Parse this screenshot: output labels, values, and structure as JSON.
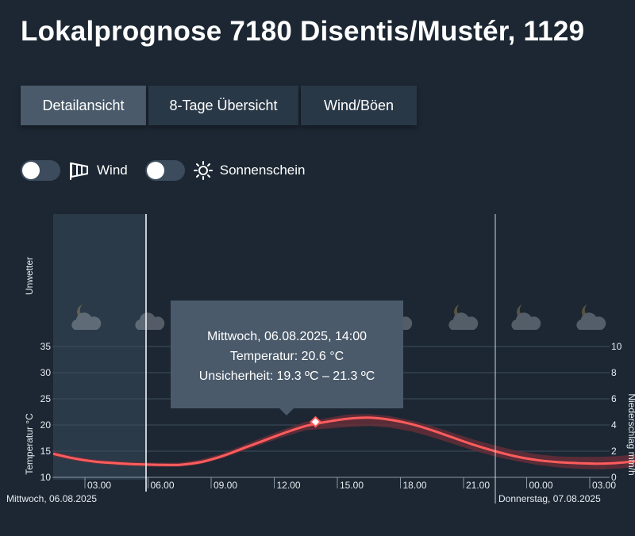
{
  "page": {
    "title": "Lokalprognose 7180 Disentis/Mustér, 1129"
  },
  "tabs": [
    {
      "label": "Detailansicht",
      "active": true
    },
    {
      "label": "8-Tage Übersicht",
      "active": false
    },
    {
      "label": "Wind/Böen",
      "active": false
    }
  ],
  "toggles": {
    "wind": {
      "label": "Wind",
      "icon": "windsock-icon",
      "on": false
    },
    "sun": {
      "label": "Sonnenschein",
      "icon": "sun-icon",
      "on": false
    }
  },
  "chart": {
    "unwetter_label": "Unwetter",
    "y_left_label": "Temperatur °C",
    "y_right_label": "Niederschlag mm/h",
    "y_left_ticks": [
      "10",
      "15",
      "20",
      "25",
      "30",
      "35"
    ],
    "y_right_ticks": [
      "0",
      "2",
      "4",
      "6",
      "8",
      "10"
    ],
    "x_ticks": [
      "03.00",
      "06.00",
      "09.00",
      "12.00",
      "15.00",
      "18.00",
      "21.00",
      "00.00",
      "03.00"
    ],
    "day_label_left": "Mittwoch, 06.08.2025",
    "day_label_right": "Donnerstag, 07.08.2025",
    "weather_icons": [
      "night-cloudy-icon",
      "cloud-icon",
      "cloud-icon",
      "night-cloudy-icon",
      "night-cloudy-icon",
      "night-cloudy-icon"
    ]
  },
  "chart_data": {
    "type": "line",
    "x": [
      "06.08 01:00",
      "06.08 02:00",
      "06.08 03:00",
      "06.08 04:00",
      "06.08 05:00",
      "06.08 06:00",
      "06.08 07:00",
      "06.08 08:00",
      "06.08 09:00",
      "06.08 10:00",
      "06.08 11:00",
      "06.08 12:00",
      "06.08 13:00",
      "06.08 14:00",
      "06.08 15:00",
      "06.08 16:00",
      "06.08 17:00",
      "06.08 18:00",
      "06.08 19:00",
      "06.08 20:00",
      "06.08 21:00",
      "06.08 22:00",
      "06.08 23:00",
      "07.08 00:00",
      "07.08 01:00",
      "07.08 02:00",
      "07.08 03:00",
      "07.08 04:00",
      "07.08 05:00"
    ],
    "series": [
      {
        "name": "Temperatur",
        "values": [
          14.5,
          13.6,
          13.0,
          12.7,
          12.5,
          12.4,
          12.4,
          12.9,
          14.0,
          15.5,
          17.0,
          18.5,
          19.8,
          20.6,
          21.2,
          21.4,
          21.0,
          20.2,
          19.0,
          17.6,
          16.2,
          15.0,
          14.0,
          13.3,
          12.9,
          12.7,
          12.6,
          12.8,
          13.3
        ]
      },
      {
        "name": "Unsicherheit min",
        "values": [
          14.0,
          13.2,
          12.6,
          12.3,
          12.1,
          12.0,
          12.0,
          12.5,
          13.6,
          15.0,
          16.4,
          17.8,
          19.0,
          19.3,
          19.6,
          19.8,
          19.5,
          18.8,
          17.7,
          16.4,
          15.1,
          14.0,
          13.1,
          12.4,
          11.9,
          11.6,
          11.5,
          11.7,
          12.2
        ]
      },
      {
        "name": "Unsicherheit max",
        "values": [
          15.0,
          14.0,
          13.4,
          13.1,
          12.9,
          12.8,
          12.8,
          13.4,
          14.5,
          16.1,
          17.7,
          19.2,
          20.6,
          21.3,
          22.0,
          22.1,
          21.7,
          20.9,
          19.8,
          18.5,
          17.2,
          16.1,
          15.1,
          14.4,
          14.0,
          13.9,
          13.9,
          14.1,
          14.6
        ]
      }
    ],
    "ylim": [
      10,
      35
    ],
    "ylabel": "Temperatur °C",
    "y2label": "Niederschlag mm/h",
    "y2lim": [
      0,
      10
    ],
    "grid": true,
    "tooltip": {
      "date": "Mittwoch, 06.08.2025, 14:00",
      "temperature": "Temperatur: 20.6 °C",
      "uncertainty": "Unsicherheit: 19.3 ºC – 21.3 ºC"
    },
    "colors": {
      "line": "#ff5c5c",
      "band": "#6e2f3a",
      "background": "#1c2733",
      "tooltip": "#4a5a6a"
    }
  }
}
